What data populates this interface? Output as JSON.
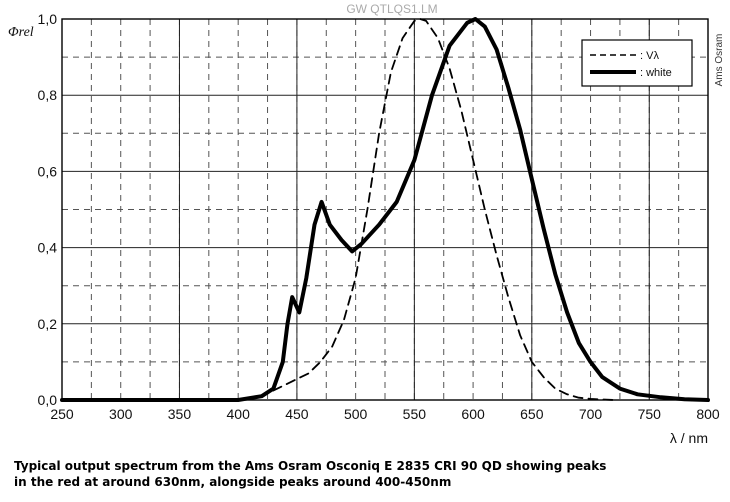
{
  "chart_data": {
    "type": "line",
    "title": "GW QTLQS1.LM",
    "watermark": "Ams Osram",
    "ylabel": "Φrel",
    "xlabel": "λ / nm",
    "xlim": [
      250,
      800
    ],
    "ylim": [
      0,
      1
    ],
    "x_ticks": [
      250,
      300,
      350,
      400,
      450,
      500,
      550,
      600,
      650,
      700,
      750,
      800
    ],
    "y_ticks": [
      "0,0",
      "0,2",
      "0,4",
      "0,6",
      "0,8",
      "1,0"
    ],
    "grid": true,
    "legend_position": "top-right",
    "series": [
      {
        "name": ": Vλ",
        "style": "dashed",
        "points": [
          [
            380,
            0
          ],
          [
            400,
            0.002
          ],
          [
            420,
            0.01
          ],
          [
            440,
            0.04
          ],
          [
            460,
            0.07
          ],
          [
            470,
            0.1
          ],
          [
            480,
            0.14
          ],
          [
            490,
            0.21
          ],
          [
            500,
            0.32
          ],
          [
            510,
            0.5
          ],
          [
            520,
            0.7
          ],
          [
            530,
            0.86
          ],
          [
            540,
            0.95
          ],
          [
            550,
            0.995
          ],
          [
            555,
            1.0
          ],
          [
            560,
            0.995
          ],
          [
            570,
            0.95
          ],
          [
            580,
            0.87
          ],
          [
            590,
            0.76
          ],
          [
            600,
            0.63
          ],
          [
            610,
            0.5
          ],
          [
            620,
            0.38
          ],
          [
            630,
            0.27
          ],
          [
            640,
            0.17
          ],
          [
            650,
            0.1
          ],
          [
            660,
            0.06
          ],
          [
            670,
            0.03
          ],
          [
            680,
            0.015
          ],
          [
            690,
            0.006
          ],
          [
            700,
            0.003
          ],
          [
            720,
            0.0
          ]
        ]
      },
      {
        "name": ": white",
        "style": "solid",
        "points": [
          [
            250,
            0
          ],
          [
            400,
            0
          ],
          [
            420,
            0.01
          ],
          [
            430,
            0.03
          ],
          [
            438,
            0.1
          ],
          [
            442,
            0.2
          ],
          [
            446,
            0.27
          ],
          [
            452,
            0.23
          ],
          [
            458,
            0.32
          ],
          [
            465,
            0.46
          ],
          [
            471,
            0.52
          ],
          [
            478,
            0.46
          ],
          [
            488,
            0.42
          ],
          [
            497,
            0.39
          ],
          [
            505,
            0.41
          ],
          [
            520,
            0.46
          ],
          [
            535,
            0.52
          ],
          [
            550,
            0.63
          ],
          [
            565,
            0.8
          ],
          [
            580,
            0.93
          ],
          [
            595,
            0.99
          ],
          [
            602,
            1.0
          ],
          [
            610,
            0.98
          ],
          [
            620,
            0.92
          ],
          [
            630,
            0.82
          ],
          [
            640,
            0.71
          ],
          [
            650,
            0.58
          ],
          [
            660,
            0.45
          ],
          [
            670,
            0.33
          ],
          [
            680,
            0.23
          ],
          [
            690,
            0.15
          ],
          [
            700,
            0.1
          ],
          [
            710,
            0.06
          ],
          [
            725,
            0.03
          ],
          [
            740,
            0.015
          ],
          [
            760,
            0.007
          ],
          [
            780,
            0.002
          ],
          [
            800,
            0
          ]
        ]
      }
    ]
  },
  "caption_lines": [
    "Typical output spectrum from the Ams Osram Osconiq E 2835 CRI 90 QD showing peaks",
    "in the red at around 630nm, alongside peaks around 400-450nm"
  ]
}
